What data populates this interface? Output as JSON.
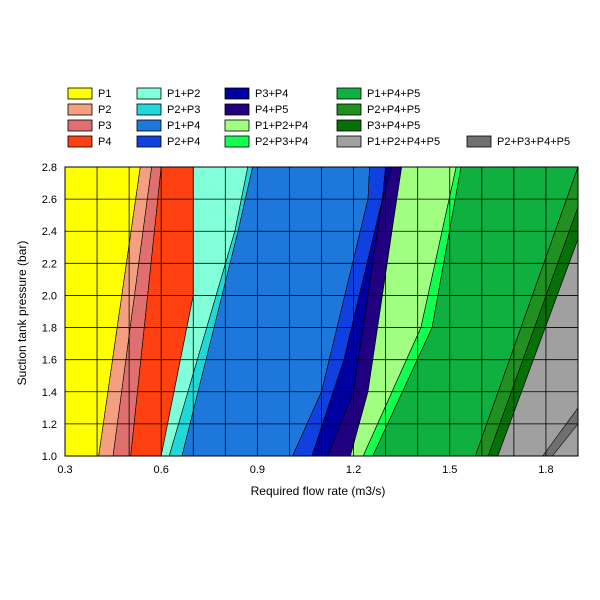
{
  "chart_data": {
    "type": "area",
    "title": "",
    "xlabel": "Required flow rate (m3/s)",
    "ylabel": "Suction tank pressure (bar)",
    "xlim": [
      0.3,
      1.9
    ],
    "ylim": [
      1.0,
      2.8
    ],
    "x_ticks": [
      "0.3",
      "0.6",
      "0.9",
      "1.2",
      "1.5",
      "1.8"
    ],
    "y_ticks": [
      "1.0",
      "1.2",
      "1.4",
      "1.6",
      "1.8",
      "2.0",
      "2.2",
      "2.4",
      "2.6",
      "2.8"
    ],
    "grid": true,
    "legend_position": "top",
    "legend": [
      {
        "name": "P1",
        "color": "#ffff00"
      },
      {
        "name": "P2",
        "color": "#f4a080"
      },
      {
        "name": "P3",
        "color": "#e07070"
      },
      {
        "name": "P4",
        "color": "#ff4010"
      },
      {
        "name": "P1+P2",
        "color": "#80ffd8"
      },
      {
        "name": "P2+P3",
        "color": "#20d8d8"
      },
      {
        "name": "P1+P4",
        "color": "#1e78dc"
      },
      {
        "name": "P2+P4",
        "color": "#1040e0"
      },
      {
        "name": "P3+P4",
        "color": "#0000a0"
      },
      {
        "name": "P4+P5",
        "color": "#200080"
      },
      {
        "name": "P1+P2+P4",
        "color": "#a0ff80"
      },
      {
        "name": "P2+P3+P4",
        "color": "#10ff50"
      },
      {
        "name": "P1+P4+P5",
        "color": "#10b040"
      },
      {
        "name": "P2+P4+P5",
        "color": "#209020"
      },
      {
        "name": "P3+P4+P5",
        "color": "#087008"
      },
      {
        "name": "P1+P2+P4+P5",
        "color": "#a0a0a0"
      },
      {
        "name": "P2+P3+P4+P5",
        "color": "#707070"
      }
    ],
    "regions": [
      {
        "name": "P1",
        "left": [
          [
            0.3,
            1.0
          ],
          [
            0.3,
            2.8
          ]
        ],
        "right": [
          [
            0.405,
            1.0
          ],
          [
            0.535,
            2.8
          ]
        ]
      },
      {
        "name": "P2",
        "left": [
          [
            0.405,
            1.0
          ],
          [
            0.535,
            2.8
          ]
        ],
        "right": [
          [
            0.45,
            1.0
          ],
          [
            0.57,
            2.8
          ]
        ]
      },
      {
        "name": "P3",
        "left": [
          [
            0.45,
            1.0
          ],
          [
            0.57,
            2.8
          ]
        ],
        "right": [
          [
            0.505,
            1.0
          ],
          [
            0.6,
            2.8
          ]
        ]
      },
      {
        "name": "P4",
        "left": [
          [
            0.505,
            1.0
          ],
          [
            0.6,
            2.8
          ]
        ],
        "right": [
          [
            0.6,
            1.0
          ],
          [
            0.7,
            2.0
          ],
          [
            0.7,
            2.8
          ]
        ]
      },
      {
        "name": "P1+P2",
        "left": [
          [
            0.6,
            1.0
          ],
          [
            0.7,
            2.0
          ],
          [
            0.7,
            2.8
          ]
        ],
        "right": [
          [
            0.625,
            1.0
          ],
          [
            0.83,
            2.4
          ],
          [
            0.87,
            2.8
          ]
        ]
      },
      {
        "name": "P2+P3",
        "left": [
          [
            0.625,
            1.0
          ],
          [
            0.83,
            2.4
          ],
          [
            0.87,
            2.8
          ]
        ],
        "right": [
          [
            0.665,
            1.0
          ],
          [
            0.84,
            2.4
          ],
          [
            0.885,
            2.8
          ]
        ]
      },
      {
        "name": "P1+P4",
        "left": [
          [
            0.665,
            1.0
          ],
          [
            0.84,
            2.4
          ],
          [
            0.885,
            2.8
          ]
        ],
        "right": [
          [
            1.01,
            1.0
          ],
          [
            1.1,
            1.4
          ],
          [
            1.245,
            2.6
          ],
          [
            1.25,
            2.8
          ]
        ]
      },
      {
        "name": "P2+P4",
        "left": [
          [
            1.01,
            1.0
          ],
          [
            1.1,
            1.4
          ],
          [
            1.245,
            2.6
          ],
          [
            1.25,
            2.8
          ]
        ],
        "right": [
          [
            1.07,
            1.0
          ],
          [
            1.17,
            1.6
          ],
          [
            1.29,
            2.6
          ],
          [
            1.3,
            2.8
          ]
        ]
      },
      {
        "name": "P3+P4",
        "left": [
          [
            1.07,
            1.0
          ],
          [
            1.17,
            1.6
          ],
          [
            1.29,
            2.6
          ],
          [
            1.3,
            2.8
          ]
        ],
        "right": [
          [
            1.12,
            1.0
          ],
          [
            1.2,
            1.4
          ],
          [
            1.29,
            2.6
          ],
          [
            1.32,
            2.8
          ]
        ]
      },
      {
        "name": "P4+P5",
        "left": [
          [
            1.12,
            1.0
          ],
          [
            1.2,
            1.4
          ],
          [
            1.29,
            2.6
          ],
          [
            1.32,
            2.8
          ]
        ],
        "right": [
          [
            1.19,
            1.0
          ],
          [
            1.245,
            1.4
          ],
          [
            1.335,
            2.6
          ],
          [
            1.35,
            2.8
          ]
        ]
      },
      {
        "name": "P1+P2+P4",
        "left": [
          [
            1.19,
            1.0
          ],
          [
            1.245,
            1.4
          ],
          [
            1.335,
            2.6
          ],
          [
            1.35,
            2.8
          ]
        ],
        "right": [
          [
            1.23,
            1.0
          ],
          [
            1.41,
            1.8
          ],
          [
            1.52,
            2.8
          ]
        ]
      },
      {
        "name": "P2+P3+P4",
        "left": [
          [
            1.23,
            1.0
          ],
          [
            1.41,
            1.8
          ],
          [
            1.52,
            2.8
          ]
        ],
        "right": [
          [
            1.26,
            1.0
          ],
          [
            1.445,
            1.8
          ],
          [
            1.535,
            2.8
          ]
        ]
      },
      {
        "name": "P1+P4+P5",
        "left": [
          [
            1.26,
            1.0
          ],
          [
            1.445,
            1.8
          ],
          [
            1.535,
            2.8
          ]
        ],
        "right": [
          [
            1.58,
            1.0
          ],
          [
            1.9,
            2.8
          ]
        ]
      },
      {
        "name": "P2+P4+P5",
        "left": [
          [
            1.58,
            1.0
          ],
          [
            1.9,
            2.8
          ]
        ],
        "right": [
          [
            1.62,
            1.0
          ],
          [
            1.9,
            2.55
          ]
        ]
      },
      {
        "name": "P3+P4+P5",
        "left": [
          [
            1.62,
            1.0
          ],
          [
            1.9,
            2.55
          ]
        ],
        "right": [
          [
            1.65,
            1.0
          ],
          [
            1.9,
            2.35
          ]
        ]
      },
      {
        "name": "P1+P2+P4+P5",
        "left": [
          [
            1.65,
            1.0
          ],
          [
            1.9,
            2.35
          ]
        ],
        "right": [
          [
            1.9,
            1.0
          ]
        ]
      },
      {
        "name": "P2+P3+P4+P5",
        "left": [
          [
            1.79,
            1.0
          ],
          [
            1.9,
            1.3
          ]
        ],
        "right": [
          [
            1.82,
            1.0
          ],
          [
            1.9,
            1.2
          ]
        ]
      }
    ]
  }
}
